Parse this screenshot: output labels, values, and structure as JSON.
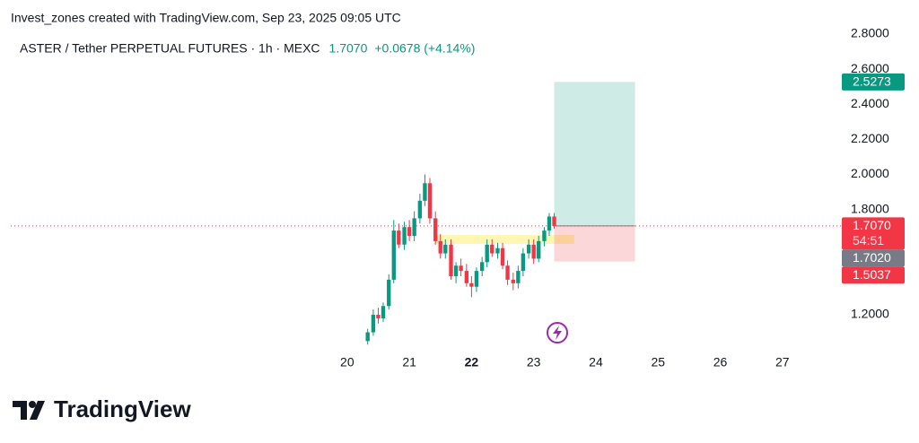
{
  "header": "Invest_zones created with TradingView.com, Sep 23, 2025 09:05 UTC",
  "brand": "TradingView",
  "chart_data": {
    "type": "candlestick",
    "symbol": "ASTER / Tether PERPETUAL FUTURES · 1h · MEXC",
    "change": "+0.0678 (+4.14%)",
    "up_color": "#089981",
    "down_color": "#f23645",
    "x": [
      20.33,
      20.42,
      20.5,
      20.58,
      20.67,
      20.75,
      20.83,
      20.92,
      21.0,
      21.08,
      21.17,
      21.25,
      21.33,
      21.42,
      21.5,
      21.58,
      21.67,
      21.75,
      21.83,
      21.92,
      22.0,
      22.08,
      22.17,
      22.25,
      22.33,
      22.42,
      22.5,
      22.58,
      22.67,
      22.75,
      22.83,
      22.92,
      23.0,
      23.08,
      23.17,
      23.25,
      23.33
    ],
    "open": [
      1.05,
      1.1,
      1.2,
      1.18,
      1.25,
      1.4,
      1.68,
      1.6,
      1.7,
      1.65,
      1.75,
      1.85,
      1.95,
      1.75,
      1.62,
      1.55,
      1.6,
      1.42,
      1.48,
      1.45,
      1.38,
      1.36,
      1.45,
      1.5,
      1.6,
      1.55,
      1.58,
      1.48,
      1.4,
      1.38,
      1.45,
      1.55,
      1.6,
      1.52,
      1.62,
      1.68,
      1.76
    ],
    "high": [
      1.12,
      1.23,
      1.24,
      1.27,
      1.43,
      1.74,
      1.72,
      1.73,
      1.74,
      1.79,
      1.89,
      2.0,
      1.98,
      1.79,
      1.66,
      1.63,
      1.63,
      1.5,
      1.52,
      1.49,
      1.42,
      1.47,
      1.53,
      1.63,
      1.63,
      1.61,
      1.61,
      1.51,
      1.44,
      1.48,
      1.58,
      1.63,
      1.63,
      1.65,
      1.7,
      1.78,
      1.78
    ],
    "low": [
      1.03,
      1.08,
      1.15,
      1.16,
      1.23,
      1.38,
      1.58,
      1.57,
      1.62,
      1.62,
      1.72,
      1.82,
      1.72,
      1.6,
      1.52,
      1.52,
      1.4,
      1.38,
      1.42,
      1.36,
      1.3,
      1.33,
      1.42,
      1.47,
      1.53,
      1.52,
      1.46,
      1.37,
      1.34,
      1.35,
      1.42,
      1.52,
      1.49,
      1.5,
      1.59,
      1.65,
      1.69
    ],
    "close": [
      1.1,
      1.2,
      1.18,
      1.25,
      1.4,
      1.68,
      1.6,
      1.7,
      1.65,
      1.75,
      1.85,
      1.95,
      1.75,
      1.62,
      1.55,
      1.6,
      1.42,
      1.48,
      1.45,
      1.38,
      1.36,
      1.45,
      1.5,
      1.6,
      1.55,
      1.58,
      1.48,
      1.4,
      1.38,
      1.45,
      1.55,
      1.6,
      1.52,
      1.62,
      1.68,
      1.76,
      1.707
    ],
    "xlim": [
      14.59,
      27.84
    ],
    "xticks": [
      20,
      21,
      22,
      23,
      24,
      25,
      26,
      27
    ],
    "xtick_bold": [
      22
    ],
    "ylim": [
      0.873,
      2.841
    ],
    "yticks": [
      {
        "value": 2.8,
        "label": "2.8000"
      },
      {
        "value": 2.6,
        "label": "2.6000"
      },
      {
        "value": 2.4,
        "label": "2.4000"
      },
      {
        "value": 2.2,
        "label": "2.2000"
      },
      {
        "value": 2.0,
        "label": "2.0000"
      },
      {
        "value": 1.8,
        "label": "1.8000"
      },
      {
        "value": 1.2,
        "label": "1.2000"
      }
    ],
    "last_price": {
      "value": 1.707,
      "label": "1.7070",
      "countdown": "54:51",
      "color": "#f23645"
    },
    "zone": {
      "x": [
        21.39,
        23.65
      ],
      "y": [
        1.604,
        1.655
      ],
      "color": "#fff59d"
    },
    "position": {
      "x": [
        23.33,
        24.63
      ],
      "target": {
        "value": 2.5273,
        "label": "2.5273",
        "color": "#089981"
      },
      "entry": {
        "value": 1.702,
        "label": "1.7020",
        "color": "#787b86"
      },
      "stop": {
        "value": 1.5037,
        "label": "1.5037",
        "color": "#f23645"
      }
    }
  }
}
